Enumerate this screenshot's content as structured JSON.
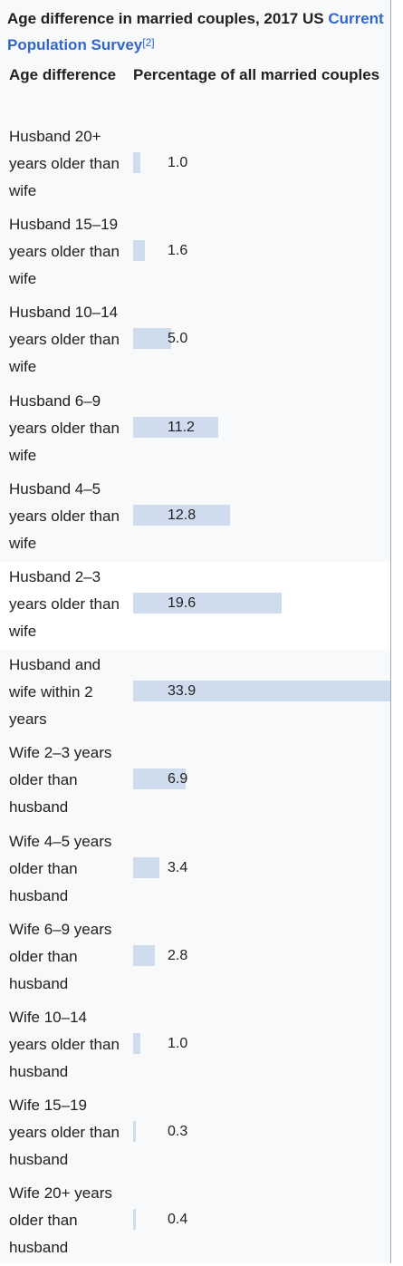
{
  "caption": {
    "title": "Age difference in married couples, 2017 US",
    "link_text": "Current Population Survey",
    "ref": "[2]"
  },
  "headers": {
    "age": "Age difference",
    "percentage": "Percentage of all married couples"
  },
  "highlight_row": 5,
  "chart_data": {
    "type": "bar",
    "title": "Age difference in married couples, 2017 US Current Population Survey",
    "xlabel": "Age difference",
    "ylabel": "Percentage of all married couples",
    "ylim": [
      0,
      33.9
    ],
    "categories": [
      "Husband 20+ years older than wife",
      "Husband 15–19 years older than wife",
      "Husband 10–14 years older than wife",
      "Husband 6–9 years older than wife",
      "Husband 4–5 years older than wife",
      "Husband 2–3 years older than wife",
      "Husband and wife within 2 years",
      "Wife 2–3 years older than husband",
      "Wife 4–5 years older than husband",
      "Wife 6–9 years older than husband",
      "Wife 10–14 years older than husband",
      "Wife 15–19 years older than husband",
      "Wife 20+ years older than husband"
    ],
    "values": [
      1.0,
      1.6,
      5.0,
      11.2,
      12.8,
      19.6,
      33.9,
      6.9,
      3.4,
      2.8,
      1.0,
      0.3,
      0.4
    ],
    "value_labels": [
      "1.0",
      "1.6",
      "5.0",
      "11.2",
      "12.8",
      "19.6",
      "33.9",
      "6.9",
      "3.4",
      "2.8",
      "1.0",
      "0.3",
      "0.4"
    ],
    "bar_color": "#cfdcee"
  }
}
